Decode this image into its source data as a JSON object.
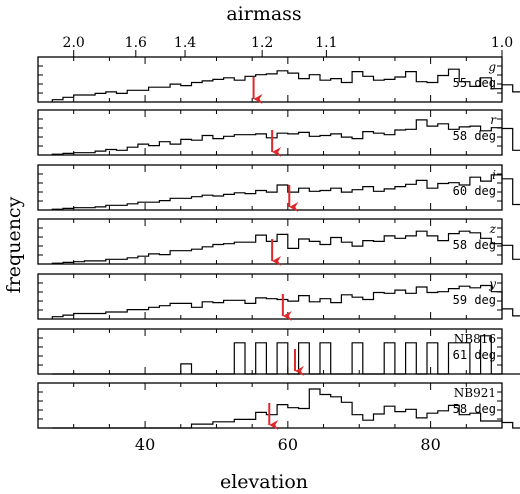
{
  "chart_data": {
    "type": "histogram",
    "xlabel": "elevation",
    "ylabel": "frequency",
    "top_axis_label": "airmass",
    "xlim": [
      25,
      90
    ],
    "bin_start": 27.0,
    "bin_width": 1.5,
    "x_ticks": [
      40,
      60,
      80
    ],
    "top_ticks": [
      "2.0",
      "1.6",
      "1.4",
      "1.2",
      "1.1",
      "1.0"
    ],
    "top_tick_elevations": [
      30.0,
      38.7,
      45.6,
      56.4,
      65.4,
      90.0
    ],
    "marker_color": "#e0282a",
    "series": [
      {
        "band": "g",
        "median_label": "55 deg",
        "median": 55.2,
        "counts": [
          0.06,
          0.12,
          0.18,
          0.18,
          0.22,
          0.26,
          0.22,
          0.3,
          0.3,
          0.38,
          0.38,
          0.46,
          0.42,
          0.5,
          0.54,
          0.58,
          0.62,
          0.56,
          0.66,
          0.7,
          0.72,
          0.8,
          0.74,
          0.6,
          0.7,
          0.56,
          0.6,
          0.5,
          0.78,
          0.66,
          0.56,
          0.58,
          0.64,
          0.78,
          0.52,
          0.5,
          0.68,
          0.84,
          0.52,
          0.4,
          0.62,
          0.34,
          0.44,
          0.26,
          0.34
        ]
      },
      {
        "band": "r",
        "median_label": "58 deg",
        "median": 57.8,
        "counts": [
          0.02,
          0.04,
          0.06,
          0.06,
          0.1,
          0.14,
          0.12,
          0.2,
          0.28,
          0.24,
          0.34,
          0.28,
          0.4,
          0.38,
          0.5,
          0.42,
          0.48,
          0.52,
          0.52,
          0.54,
          0.44,
          0.56,
          0.54,
          0.58,
          0.48,
          0.5,
          0.54,
          0.46,
          0.42,
          0.6,
          0.56,
          0.52,
          0.64,
          0.66,
          0.9,
          0.74,
          0.8,
          0.66,
          0.72,
          0.74,
          0.62,
          0.7,
          0.68,
          0.12,
          0.0
        ]
      },
      {
        "band": "i",
        "median_label": "60 deg",
        "median": 60.2,
        "counts": [
          0.02,
          0.04,
          0.06,
          0.06,
          0.08,
          0.12,
          0.12,
          0.16,
          0.2,
          0.2,
          0.24,
          0.3,
          0.3,
          0.34,
          0.38,
          0.36,
          0.4,
          0.44,
          0.42,
          0.5,
          0.46,
          0.64,
          0.46,
          0.56,
          0.48,
          0.5,
          0.56,
          0.46,
          0.52,
          0.6,
          0.48,
          0.54,
          0.6,
          0.66,
          0.76,
          0.56,
          0.68,
          0.7,
          0.64,
          0.84,
          0.74,
          0.9,
          0.8,
          0.14,
          0.0
        ]
      },
      {
        "band": "z",
        "median_label": "58 deg",
        "median": 57.8,
        "counts": [
          0.02,
          0.04,
          0.06,
          0.08,
          0.08,
          0.12,
          0.12,
          0.16,
          0.2,
          0.26,
          0.24,
          0.34,
          0.34,
          0.38,
          0.44,
          0.5,
          0.52,
          0.56,
          0.56,
          0.74,
          0.58,
          0.76,
          0.4,
          0.64,
          0.58,
          0.5,
          0.68,
          0.56,
          0.46,
          0.6,
          0.58,
          0.72,
          0.66,
          0.72,
          0.84,
          0.72,
          0.6,
          0.78,
          0.84,
          0.8,
          0.66,
          0.52,
          0.48,
          0.12,
          0.0
        ]
      },
      {
        "band": "y",
        "median_label": "59 deg",
        "median": 59.3,
        "counts": [
          0.06,
          0.1,
          0.14,
          0.14,
          0.14,
          0.18,
          0.18,
          0.24,
          0.24,
          0.3,
          0.34,
          0.4,
          0.4,
          0.3,
          0.44,
          0.42,
          0.48,
          0.48,
          0.4,
          0.54,
          0.52,
          0.5,
          0.46,
          0.6,
          0.44,
          0.52,
          0.42,
          0.62,
          0.56,
          0.5,
          0.68,
          0.66,
          0.74,
          0.66,
          0.82,
          0.68,
          0.7,
          0.78,
          0.84,
          0.8,
          0.86,
          0.7,
          0.26,
          0.08,
          0.0
        ]
      },
      {
        "band": "NB816",
        "median_label": "61 deg",
        "median": 61.0,
        "counts": [
          0,
          0,
          0,
          0,
          0,
          0,
          0,
          0,
          0,
          0,
          0,
          0,
          0.26,
          0,
          0,
          0,
          0,
          0.8,
          0,
          0.8,
          0,
          0.8,
          0,
          0.8,
          0,
          0.8,
          0,
          0,
          0.8,
          0,
          0,
          0.8,
          0,
          0.8,
          0,
          0.8,
          0,
          0.8,
          0.8,
          0,
          0.98,
          0,
          0,
          0,
          0
        ]
      },
      {
        "band": "NB921",
        "median_label": "58 deg",
        "median": 57.4,
        "counts": [
          0,
          0,
          0,
          0,
          0,
          0,
          0,
          0,
          0,
          0,
          0,
          0,
          0,
          0.1,
          0.1,
          0.16,
          0.16,
          0.22,
          0.22,
          0.4,
          0.34,
          0.6,
          0.52,
          0.5,
          1.0,
          0.86,
          0.8,
          0.66,
          0.34,
          0.2,
          0.36,
          0.56,
          0.42,
          0.48,
          0.26,
          0.38,
          0.44,
          0.58,
          0.34,
          0.38,
          0.18,
          0.18,
          0.14,
          0.0,
          0.0
        ]
      }
    ]
  }
}
